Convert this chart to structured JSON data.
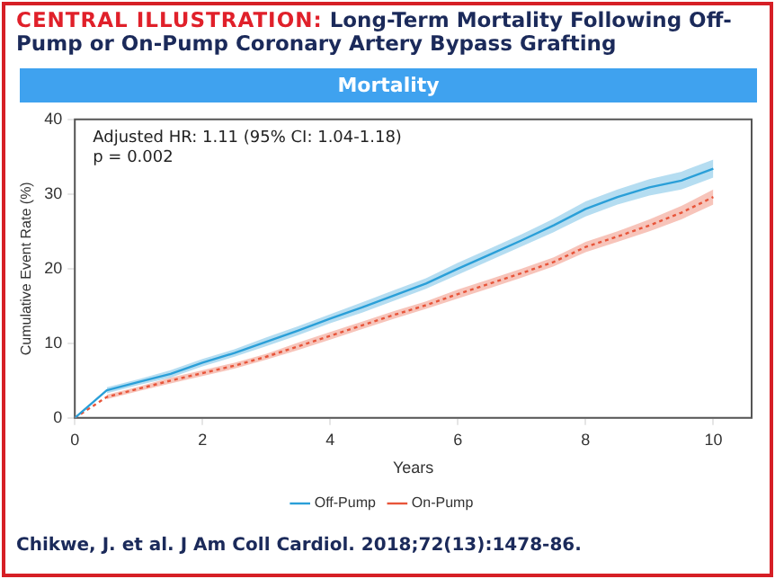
{
  "chart_data": {
    "type": "line",
    "title": "CENTRAL ILLUSTRATION: Long-Term Mortality Following Off-Pump or On-Pump Coronary Artery Bypass Grafting",
    "subtitle": "Mortality",
    "xlabel": "Years",
    "ylabel": "Cumulative Event Rate (%)",
    "annotations": [
      "Adjusted HR: 1.11 (95% CI: 1.04-1.18)",
      "p = 0.002",
      "Chikwe, J. et al. J Am Coll Cardiol. 2018;72(13):1478-86."
    ],
    "x": [
      0,
      0.5,
      1,
      1.5,
      2,
      2.5,
      3,
      3.5,
      4,
      4.5,
      5,
      5.5,
      6,
      6.5,
      7,
      7.5,
      8,
      8.5,
      9,
      9.5,
      10
    ],
    "series": [
      {
        "name": "Off-Pump",
        "color": "#2a9fd8",
        "line_style": "solid",
        "values": [
          0,
          3.7,
          4.8,
          5.9,
          7.4,
          8.7,
          10.2,
          11.7,
          13.3,
          14.8,
          16.4,
          18,
          20,
          21.9,
          23.8,
          25.8,
          28,
          29.6,
          30.9,
          31.8,
          33.4
        ],
        "lower": [
          null,
          3.3,
          4.4,
          5.4,
          6.9,
          8.2,
          9.6,
          11.1,
          12.7,
          14.1,
          15.7,
          17.3,
          19.2,
          21.1,
          23,
          24.9,
          27,
          28.6,
          29.8,
          30.6,
          32.2
        ],
        "upper": [
          null,
          4.1,
          5.2,
          6.4,
          7.9,
          9.2,
          10.8,
          12.3,
          13.9,
          15.5,
          17.1,
          18.7,
          20.8,
          22.7,
          24.6,
          26.7,
          29,
          30.6,
          32,
          33,
          34.6
        ]
      },
      {
        "name": "On-Pump",
        "color": "#e8553a",
        "line_style": "dotted",
        "values": [
          0,
          2.8,
          3.9,
          5,
          6,
          7,
          8.2,
          9.6,
          11,
          12.4,
          13.8,
          15.1,
          16.6,
          18,
          19.4,
          20.9,
          22.9,
          24.3,
          25.8,
          27.5,
          29.6
        ],
        "lower": [
          null,
          2.5,
          3.6,
          4.6,
          5.6,
          6.6,
          7.8,
          9.1,
          10.5,
          11.9,
          13.3,
          14.6,
          16,
          17.4,
          18.8,
          20.3,
          22.2,
          23.6,
          25,
          26.6,
          28.6
        ],
        "upper": [
          null,
          3.1,
          4.2,
          5.4,
          6.4,
          7.4,
          8.6,
          10.1,
          11.5,
          12.9,
          14.3,
          15.6,
          17.2,
          18.6,
          20,
          21.5,
          23.6,
          25,
          26.6,
          28.4,
          30.6
        ]
      }
    ],
    "xlim": [
      0,
      10.6
    ],
    "xticks": [
      0,
      2,
      4,
      6,
      8,
      10
    ],
    "ylim": [
      0,
      40
    ],
    "yticks": [
      0,
      10,
      20,
      30,
      40
    ],
    "grid": false,
    "legend": "bottom",
    "marker": "none"
  }
}
